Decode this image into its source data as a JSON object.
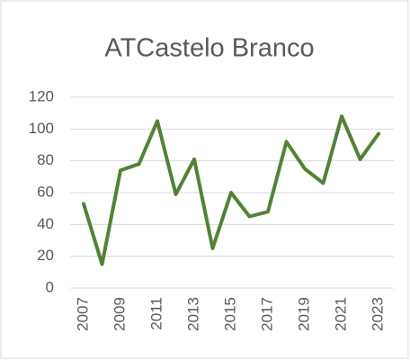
{
  "chart_data": {
    "type": "line",
    "title": "ATCastelo Branco",
    "categories": [
      "2007",
      null,
      "2009",
      null,
      "2011",
      null,
      "2013",
      null,
      "2015",
      null,
      "2017",
      null,
      "2019",
      null,
      "2021",
      null,
      "2023"
    ],
    "values": [
      53,
      15,
      74,
      78,
      105,
      59,
      81,
      25,
      60,
      45,
      48,
      92,
      75,
      66,
      108,
      81,
      97
    ],
    "color": "#548235",
    "ylim": [
      0,
      120
    ],
    "yticks": [
      0,
      20,
      40,
      60,
      80,
      100,
      120
    ],
    "grid": true
  }
}
